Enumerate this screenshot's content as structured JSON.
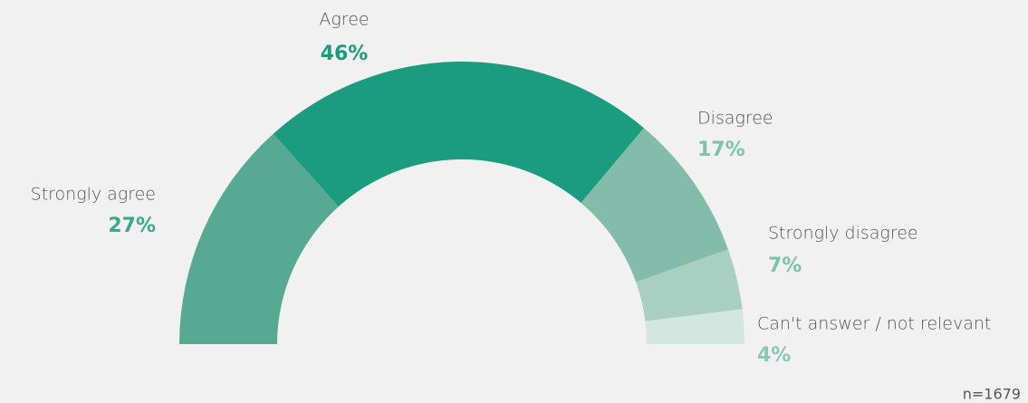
{
  "chart_data": {
    "type": "semi-donut",
    "categories": [
      "Strongly agree",
      "Agree",
      "Disagree",
      "Strongly disagree",
      "Can't answer / not relevant"
    ],
    "values": [
      27,
      46,
      17,
      7,
      4
    ],
    "value_labels": [
      "27%",
      "46%",
      "17%",
      "7%",
      "4%"
    ],
    "colors": [
      "#57a993",
      "#1b9c7f",
      "#83bcaa",
      "#a9cfc2",
      "#d2e7df"
    ],
    "label_colors": [
      "#3aa88a",
      "#1b9c7f",
      "#7cc2ac",
      "#7cc2ac",
      "#86c9b4"
    ],
    "note": "n=1679"
  }
}
